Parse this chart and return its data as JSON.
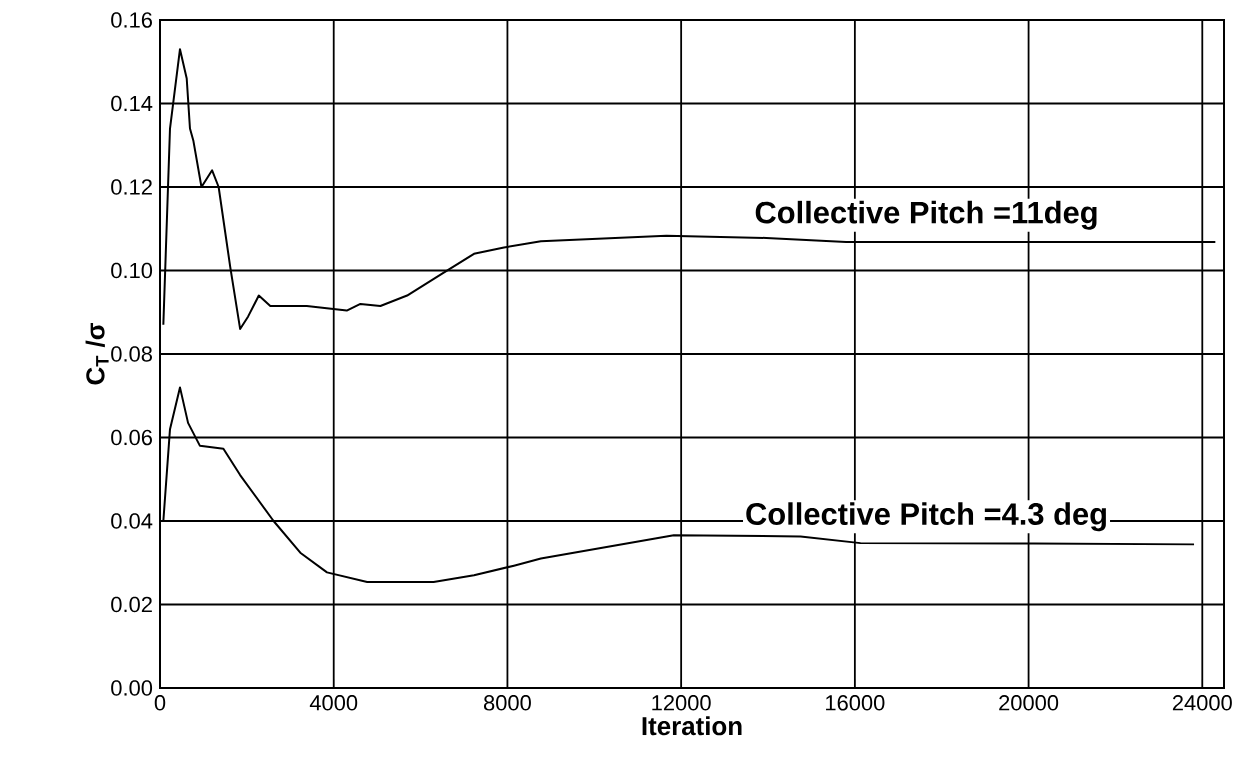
{
  "chart_data": {
    "type": "line",
    "xlabel": "Iteration",
    "ylabel": "C$_{T}$ /σ",
    "xlim": [
      0,
      24500
    ],
    "ylim": [
      0,
      0.16
    ],
    "xticks": [
      0,
      4000,
      8000,
      12000,
      16000,
      20000,
      24000
    ],
    "yticks": [
      {
        "value": 0,
        "label": "0.00"
      },
      {
        "value": 0.02,
        "label": "0.02"
      },
      {
        "value": 0.04,
        "label": "0.04"
      },
      {
        "value": 0.06,
        "label": "0.06"
      },
      {
        "value": 0.08,
        "label": "0.08"
      },
      {
        "value": 0.1,
        "label": "0.10"
      },
      {
        "value": 0.12,
        "label": "0.12"
      },
      {
        "value": 0.14,
        "label": "0.14"
      },
      {
        "value": 0.16,
        "label": "0.16"
      }
    ],
    "grid": true,
    "marker": "none",
    "line_style": "solid",
    "series": [
      {
        "color": "#000000",
        "x": [
          77,
          230,
          460,
          615,
          690,
          770,
          955,
          1200,
          1350,
          1615,
          1845,
          2030,
          2275,
          2540,
          3380,
          4300,
          4615,
          5075,
          5690,
          6460,
          7230,
          7920,
          8770,
          11660,
          13960,
          15800,
          20000,
          24300
        ],
        "values": [
          0.087,
          0.134,
          0.153,
          0.146,
          0.134,
          0.131,
          0.12,
          0.124,
          0.12,
          0.101,
          0.086,
          0.089,
          0.094,
          0.0915,
          0.0915,
          0.0904,
          0.092,
          0.0915,
          0.094,
          0.099,
          0.104,
          0.1055,
          0.107,
          0.1083,
          0.1078,
          0.1068,
          0.1068,
          0.1068
        ]
      },
      {
        "color": "#000000",
        "x": [
          77,
          230,
          460,
          646,
          920,
          1460,
          1845,
          2615,
          3230,
          3845,
          4770,
          6300,
          7230,
          8150,
          8770,
          11830,
          14750,
          16130,
          20120,
          23810
        ],
        "values": [
          0.04,
          0.062,
          0.072,
          0.0635,
          0.058,
          0.0573,
          0.051,
          0.04,
          0.0324,
          0.0277,
          0.0254,
          0.0254,
          0.027,
          0.0293,
          0.031,
          0.0366,
          0.0363,
          0.0347,
          0.0346,
          0.0344
        ]
      }
    ],
    "annotations": [
      {
        "text": "Collective Pitch =11deg",
        "x": 17650,
        "y": 0.1068
      },
      {
        "text": "Collective Pitch =4.3 deg",
        "x": 17650,
        "y": 0.0346
      }
    ]
  }
}
